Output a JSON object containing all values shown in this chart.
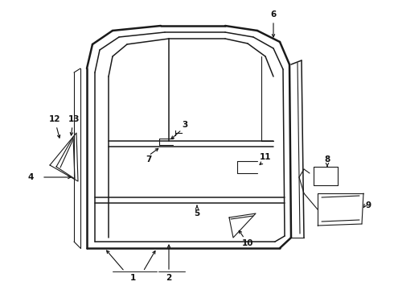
{
  "bg_color": "#ffffff",
  "line_color": "#1a1a1a",
  "label_color": "#111111",
  "fig_width": 4.9,
  "fig_height": 3.6,
  "dpi": 100
}
